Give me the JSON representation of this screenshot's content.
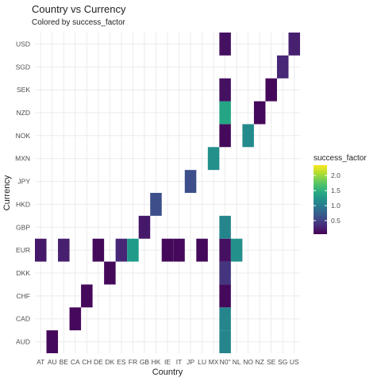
{
  "chart_data": {
    "type": "heatmap",
    "title": "Country vs Currency",
    "subtitle": "Colored by success_factor",
    "xlabel": "Country",
    "ylabel": "Currency",
    "x_categories": [
      "AT",
      "AU",
      "BE",
      "CA",
      "CH",
      "DE",
      "DK",
      "ES",
      "FR",
      "GB",
      "HK",
      "IE",
      "IT",
      "JP",
      "LU",
      "MX",
      "N0\"",
      "NL",
      "NO",
      "NZ",
      "SE",
      "SG",
      "US"
    ],
    "y_categories": [
      "AUD",
      "CAD",
      "CHF",
      "DKK",
      "EUR",
      "GBP",
      "HKD",
      "JPY",
      "MXN",
      "NOK",
      "NZD",
      "SEK",
      "SGD",
      "USD"
    ],
    "legend": {
      "title": "success_factor",
      "position": "right",
      "breaks": [
        "0.5",
        "1.0",
        "1.5",
        "2.0"
      ],
      "break_values": [
        0.5,
        1.0,
        1.5,
        2.0
      ],
      "min": 0.05,
      "max": 2.35
    },
    "grid": true,
    "cells": [
      {
        "x": "AU",
        "y": "AUD",
        "value": 0.1
      },
      {
        "x": "N0\"",
        "y": "AUD",
        "value": 1.1
      },
      {
        "x": "CA",
        "y": "CAD",
        "value": 0.1
      },
      {
        "x": "N0\"",
        "y": "CAD",
        "value": 1.1
      },
      {
        "x": "CH",
        "y": "CHF",
        "value": 0.1
      },
      {
        "x": "N0\"",
        "y": "CHF",
        "value": 0.1
      },
      {
        "x": "DK",
        "y": "DKK",
        "value": 0.1
      },
      {
        "x": "N0\"",
        "y": "DKK",
        "value": 0.4
      },
      {
        "x": "AT",
        "y": "EUR",
        "value": 0.2
      },
      {
        "x": "BE",
        "y": "EUR",
        "value": 0.25
      },
      {
        "x": "DE",
        "y": "EUR",
        "value": 0.1
      },
      {
        "x": "ES",
        "y": "EUR",
        "value": 0.3
      },
      {
        "x": "FR",
        "y": "EUR",
        "value": 1.3
      },
      {
        "x": "IE",
        "y": "EUR",
        "value": 0.1
      },
      {
        "x": "IT",
        "y": "EUR",
        "value": 0.1
      },
      {
        "x": "LU",
        "y": "EUR",
        "value": 0.1
      },
      {
        "x": "N0\"",
        "y": "EUR",
        "value": 0.15
      },
      {
        "x": "NL",
        "y": "EUR",
        "value": 1.2
      },
      {
        "x": "GB",
        "y": "GBP",
        "value": 0.2
      },
      {
        "x": "N0\"",
        "y": "GBP",
        "value": 1.1
      },
      {
        "x": "HK",
        "y": "HKD",
        "value": 0.6
      },
      {
        "x": "JP",
        "y": "JPY",
        "value": 0.6
      },
      {
        "x": "MX",
        "y": "MXN",
        "value": 1.2
      },
      {
        "x": "N0\"",
        "y": "NOK",
        "value": 0.1
      },
      {
        "x": "NO",
        "y": "NOK",
        "value": 1.15
      },
      {
        "x": "N0\"",
        "y": "NZD",
        "value": 1.4
      },
      {
        "x": "NZ",
        "y": "NZD",
        "value": 0.1
      },
      {
        "x": "N0\"",
        "y": "SEK",
        "value": 0.15
      },
      {
        "x": "SE",
        "y": "SEK",
        "value": 0.1
      },
      {
        "x": "SG",
        "y": "SGD",
        "value": 0.3
      },
      {
        "x": "N0\"",
        "y": "USD",
        "value": 0.15
      },
      {
        "x": "US",
        "y": "USD",
        "value": 0.25
      }
    ]
  }
}
